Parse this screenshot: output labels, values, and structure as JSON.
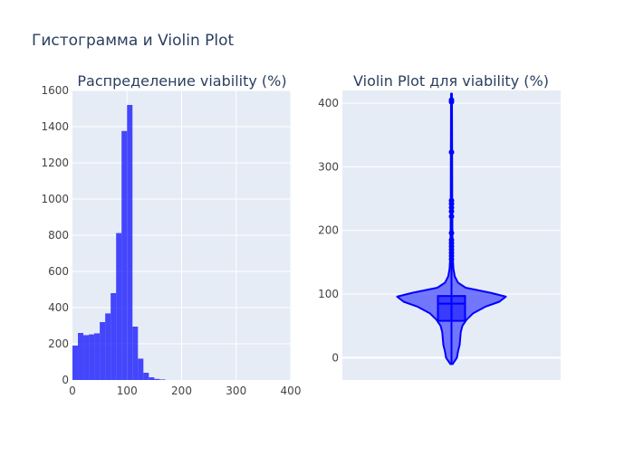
{
  "figure_title": "Гистограмма и Violin Plot",
  "colors": {
    "plot_bg": "#e5ecf6",
    "grid": "#ffffff",
    "bar": "#0000ff",
    "violin": "#0000ff",
    "text": "#444444",
    "title": "#2a3f5f"
  },
  "chart_data": [
    {
      "type": "bar",
      "title": "Распределение viability (%)",
      "xlim": [
        0,
        400
      ],
      "ylim": [
        0,
        1600
      ],
      "xticks": [
        0,
        100,
        200,
        300,
        400
      ],
      "yticks": [
        0,
        200,
        400,
        600,
        800,
        1000,
        1200,
        1400,
        1600
      ],
      "bin_width": 10,
      "bins": [
        {
          "x0": 0,
          "x1": 10,
          "count": 190
        },
        {
          "x0": 10,
          "x1": 20,
          "count": 260
        },
        {
          "x0": 20,
          "x1": 30,
          "count": 248
        },
        {
          "x0": 30,
          "x1": 40,
          "count": 252
        },
        {
          "x0": 40,
          "x1": 50,
          "count": 258
        },
        {
          "x0": 50,
          "x1": 60,
          "count": 320
        },
        {
          "x0": 60,
          "x1": 70,
          "count": 368
        },
        {
          "x0": 70,
          "x1": 80,
          "count": 480
        },
        {
          "x0": 80,
          "x1": 90,
          "count": 812
        },
        {
          "x0": 90,
          "x1": 100,
          "count": 1376
        },
        {
          "x0": 100,
          "x1": 110,
          "count": 1520
        },
        {
          "x0": 110,
          "x1": 120,
          "count": 295
        },
        {
          "x0": 120,
          "x1": 130,
          "count": 118
        },
        {
          "x0": 130,
          "x1": 140,
          "count": 40
        },
        {
          "x0": 140,
          "x1": 150,
          "count": 15
        },
        {
          "x0": 150,
          "x1": 160,
          "count": 6
        },
        {
          "x0": 160,
          "x1": 170,
          "count": 3
        }
      ]
    },
    {
      "type": "violin",
      "title": "Violin Plot для viability (%)",
      "ylim": [
        -35,
        420
      ],
      "yticks": [
        0,
        100,
        200,
        300,
        400
      ],
      "box": {
        "q1": 58,
        "median": 85,
        "q3": 97
      },
      "whisker": {
        "low": -10,
        "high": 415
      },
      "outliers": [
        155,
        160,
        165,
        170,
        175,
        180,
        185,
        196,
        222,
        230,
        236,
        242,
        247,
        323,
        402,
        405
      ],
      "density": [
        {
          "y": -10,
          "w": 0.02
        },
        {
          "y": -5,
          "w": 0.06
        },
        {
          "y": 0,
          "w": 0.1
        },
        {
          "y": 10,
          "w": 0.12
        },
        {
          "y": 20,
          "w": 0.15
        },
        {
          "y": 30,
          "w": 0.16
        },
        {
          "y": 40,
          "w": 0.17
        },
        {
          "y": 50,
          "w": 0.2
        },
        {
          "y": 60,
          "w": 0.28
        },
        {
          "y": 70,
          "w": 0.4
        },
        {
          "y": 80,
          "w": 0.62
        },
        {
          "y": 88,
          "w": 0.88
        },
        {
          "y": 96,
          "w": 1.0
        },
        {
          "y": 102,
          "w": 0.72
        },
        {
          "y": 110,
          "w": 0.26
        },
        {
          "y": 118,
          "w": 0.12
        },
        {
          "y": 128,
          "w": 0.06
        },
        {
          "y": 140,
          "w": 0.035
        },
        {
          "y": 155,
          "w": 0.025
        },
        {
          "y": 175,
          "w": 0.02
        },
        {
          "y": 200,
          "w": 0.017
        },
        {
          "y": 250,
          "w": 0.013
        },
        {
          "y": 320,
          "w": 0.011
        },
        {
          "y": 415,
          "w": 0.008
        }
      ]
    }
  ]
}
